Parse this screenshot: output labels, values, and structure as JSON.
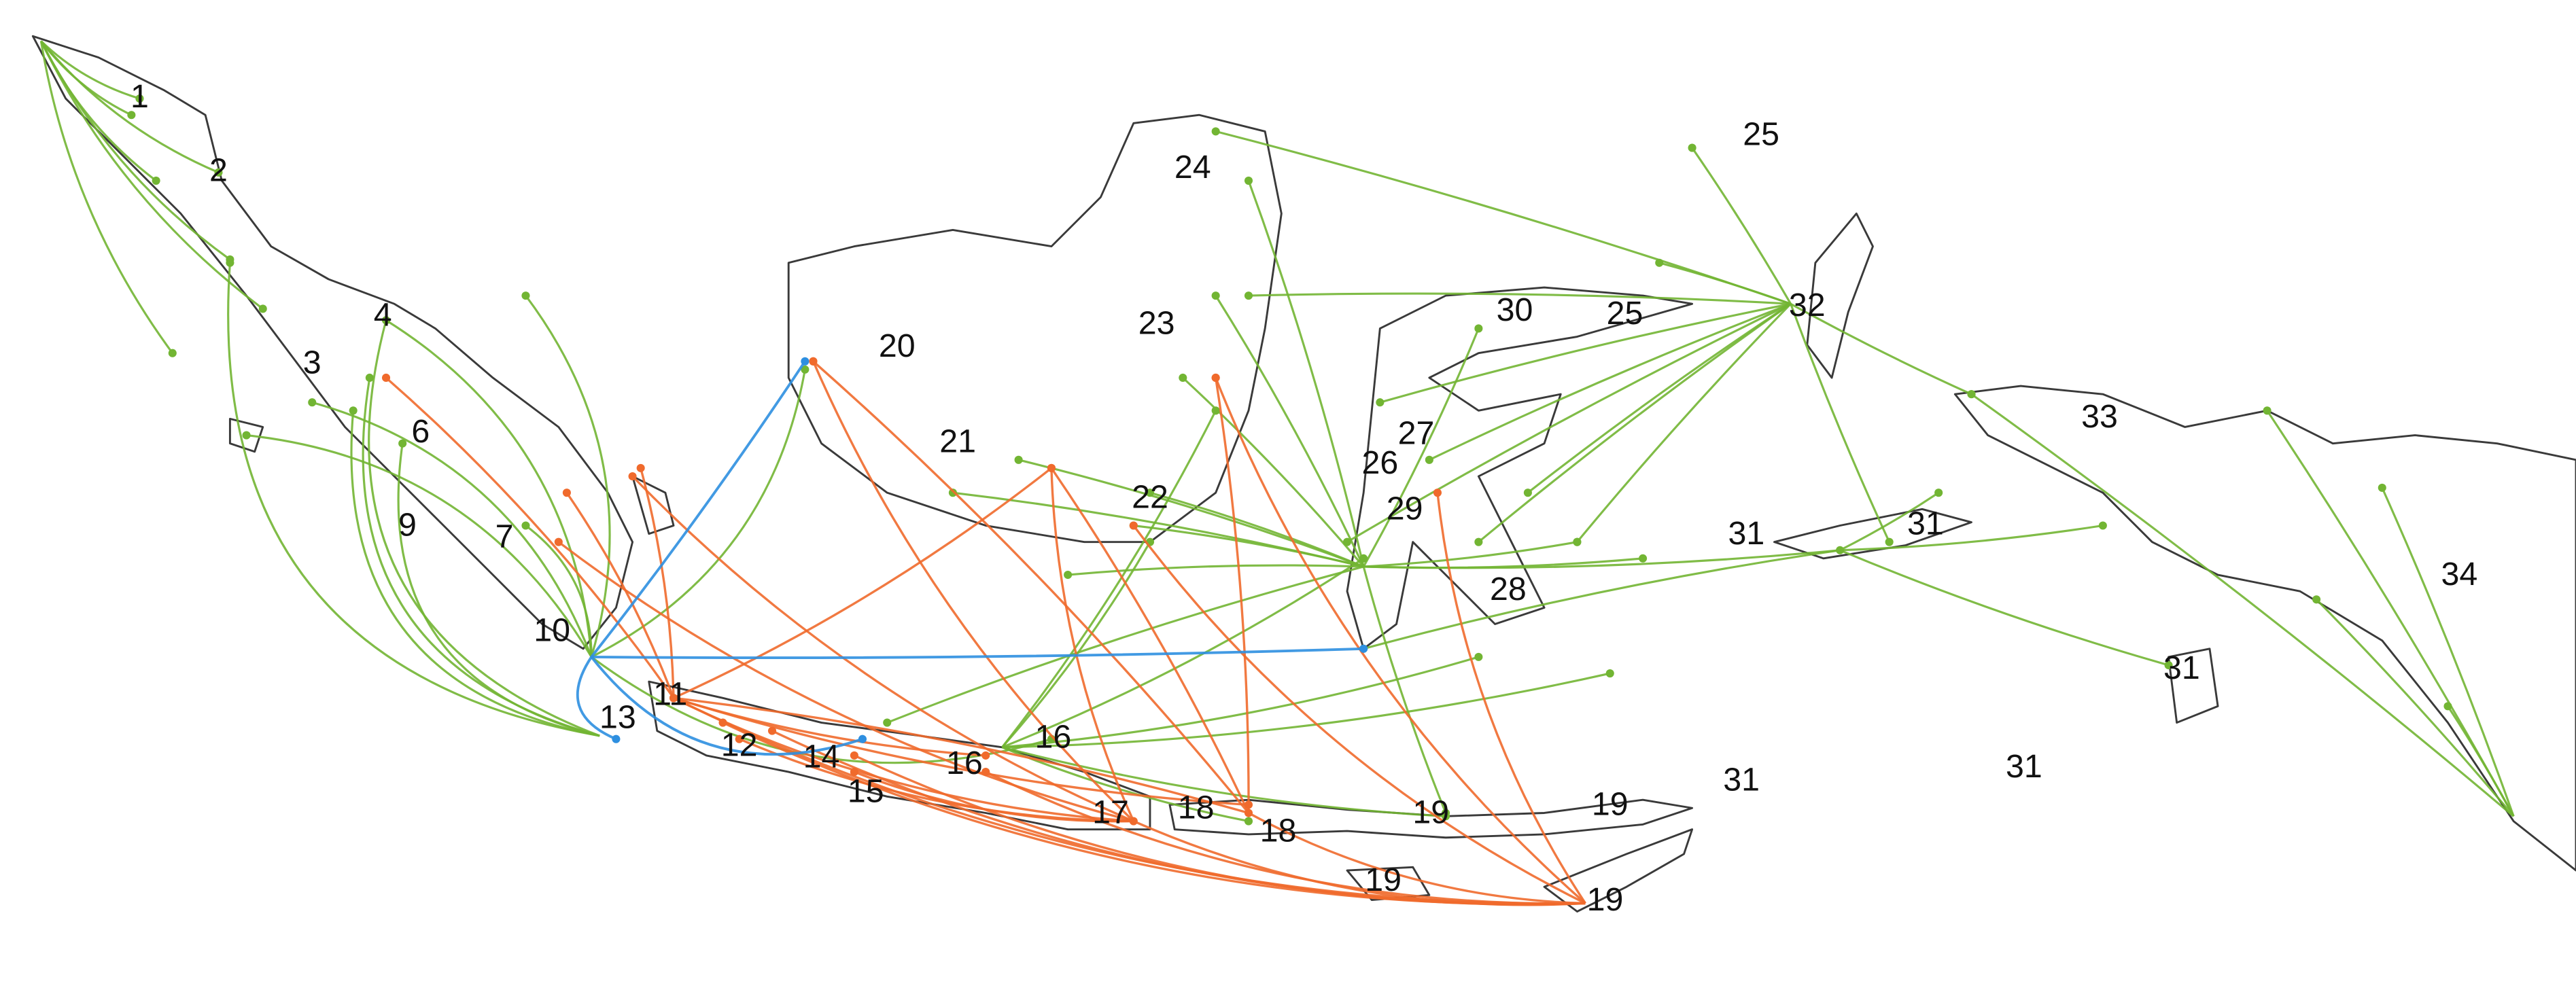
{
  "labels": [
    "1",
    "2",
    "3",
    "4",
    "6",
    "9",
    "7",
    "10",
    "13",
    "11",
    "12",
    "14",
    "15",
    "16",
    "16",
    "17",
    "18",
    "18",
    "19",
    "19",
    "19",
    "19",
    "20",
    "21",
    "22",
    "23",
    "24",
    "25",
    "25",
    "30",
    "32",
    "27",
    "26",
    "29",
    "28",
    "31",
    "31",
    "31",
    "31",
    "31",
    "33",
    "34"
  ]
}
